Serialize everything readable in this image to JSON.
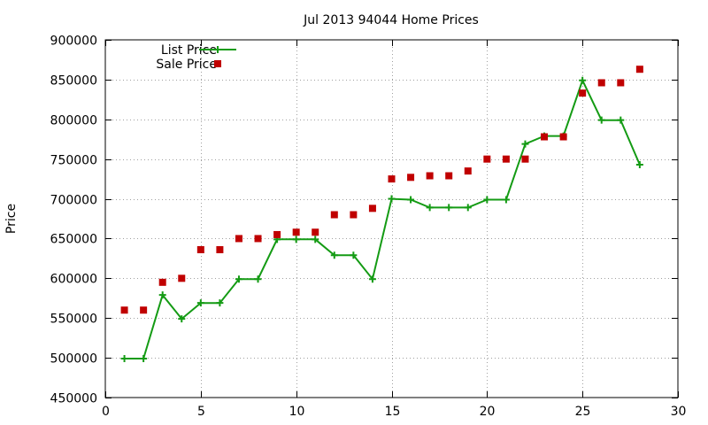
{
  "chart_data": {
    "type": "line",
    "title": "Jul 2013 94044 Home Prices",
    "xlabel": "",
    "ylabel": "Price",
    "xlim": [
      0,
      30
    ],
    "ylim": [
      450000,
      900000
    ],
    "xticks": [
      0,
      5,
      10,
      15,
      20,
      25,
      30
    ],
    "yticks": [
      450000,
      500000,
      550000,
      600000,
      650000,
      700000,
      750000,
      800000,
      850000,
      900000
    ],
    "grid": true,
    "legend_position": "top-left",
    "series": [
      {
        "name": "List Price",
        "style": "line-plus",
        "color": "#149b14",
        "x": [
          1,
          2,
          3,
          4,
          5,
          6,
          7,
          8,
          9,
          10,
          11,
          12,
          13,
          14,
          15,
          16,
          17,
          18,
          19,
          20,
          21,
          22,
          23,
          24,
          25,
          26,
          27,
          28
        ],
        "y": [
          499000,
          499000,
          579000,
          549000,
          569000,
          569000,
          599000,
          599000,
          649000,
          649000,
          649000,
          629000,
          629000,
          599000,
          700000,
          699000,
          689000,
          689000,
          689000,
          699000,
          699000,
          769000,
          779000,
          779000,
          849000,
          799000,
          799000,
          743000
        ]
      },
      {
        "name": "Sale Price",
        "style": "square",
        "color": "#c00000",
        "x": [
          1,
          2,
          3,
          4,
          5,
          6,
          7,
          8,
          9,
          10,
          11,
          12,
          13,
          14,
          15,
          16,
          17,
          18,
          19,
          20,
          21,
          22,
          23,
          24,
          25,
          26,
          27,
          28
        ],
        "y": [
          560000,
          560000,
          595000,
          600000,
          636000,
          636000,
          650000,
          650000,
          655000,
          658000,
          658000,
          680000,
          680000,
          688000,
          725000,
          727000,
          729000,
          729000,
          735000,
          750000,
          750000,
          750000,
          778000,
          778000,
          833000,
          846000,
          846000,
          863000
        ]
      }
    ]
  }
}
